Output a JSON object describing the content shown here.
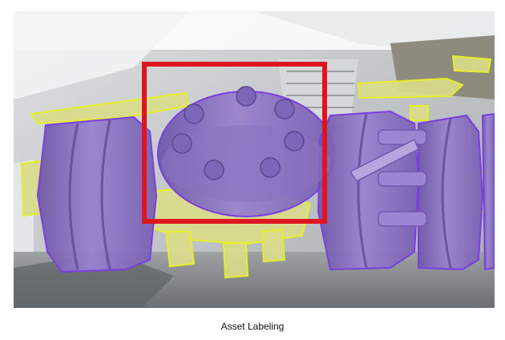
{
  "caption": "Asset Labeling",
  "colors": {
    "highlight_box": "#e0141e",
    "segment_purple": "#8c6fc4",
    "segment_purple_outline": "#7a3fe0",
    "segment_yellow": "#d9dc8a",
    "segment_yellow_outline": "#e6ee2a",
    "background_photo": "#c9cbcc"
  },
  "segments": [
    {
      "label": "flange",
      "color_key": "segment_purple"
    },
    {
      "label": "bolt",
      "color_key": "segment_yellow"
    }
  ]
}
